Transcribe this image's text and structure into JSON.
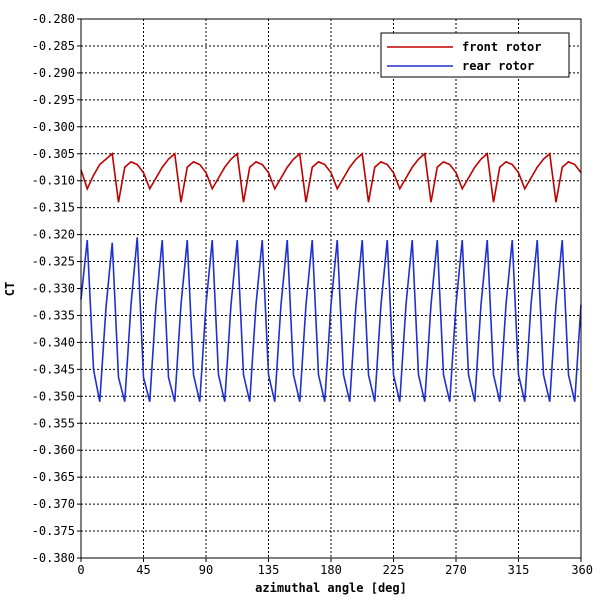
{
  "chart_data": {
    "type": "line",
    "title": "",
    "xlabel": "azimuthal angle [deg]",
    "ylabel": "CT",
    "xlim": [
      0,
      360
    ],
    "ylim": [
      -0.38,
      -0.28
    ],
    "xticks": [
      0,
      45,
      90,
      135,
      180,
      225,
      270,
      315,
      360
    ],
    "xtick_labels": [
      "0",
      "45",
      "90",
      "135",
      "180",
      "225",
      "270",
      "315",
      "360"
    ],
    "yticks": [
      -0.28,
      -0.285,
      -0.29,
      -0.295,
      -0.3,
      -0.305,
      -0.31,
      -0.315,
      -0.32,
      -0.325,
      -0.33,
      -0.335,
      -0.34,
      -0.345,
      -0.35,
      -0.355,
      -0.36,
      -0.365,
      -0.37,
      -0.375,
      -0.38
    ],
    "ytick_labels": [
      "-0.280",
      "-0.285",
      "-0.290",
      "-0.295",
      "-0.300",
      "-0.305",
      "-0.310",
      "-0.315",
      "-0.320",
      "-0.325",
      "-0.330",
      "-0.335",
      "-0.340",
      "-0.345",
      "-0.350",
      "-0.355",
      "-0.360",
      "-0.365",
      "-0.370",
      "-0.375",
      "-0.380"
    ],
    "grid": true,
    "legend_position": "top-right",
    "series": [
      {
        "name": "front rotor",
        "color": "#c00000",
        "x": [
          0,
          4.5,
          9,
          13.5,
          18,
          22.5,
          27,
          31.5,
          36,
          40.5,
          45,
          49.5,
          54,
          58.5,
          63,
          67.5,
          72,
          76.5,
          81,
          85.5,
          90,
          94.5,
          99,
          103.5,
          108,
          112.5,
          117,
          121.5,
          126,
          130.5,
          135,
          139.5,
          144,
          148.5,
          153,
          157.5,
          162,
          166.5,
          171,
          175.5,
          180,
          184.5,
          189,
          193.5,
          198,
          202.5,
          207,
          211.5,
          216,
          220.5,
          225,
          229.5,
          234,
          238.5,
          243,
          247.5,
          252,
          256.5,
          261,
          265.5,
          270,
          274.5,
          279,
          283.5,
          288,
          292.5,
          297,
          301.5,
          306,
          310.5,
          315,
          319.5,
          324,
          328.5,
          333,
          337.5,
          342,
          346.5,
          351,
          355.5,
          360
        ],
        "y": [
          -0.308,
          -0.3115,
          -0.309,
          -0.307,
          -0.306,
          -0.305,
          -0.314,
          -0.3075,
          -0.3065,
          -0.307,
          -0.3085,
          -0.3115,
          -0.3095,
          -0.3075,
          -0.306,
          -0.305,
          -0.314,
          -0.3075,
          -0.3065,
          -0.307,
          -0.3085,
          -0.3115,
          -0.3095,
          -0.3075,
          -0.306,
          -0.305,
          -0.314,
          -0.3075,
          -0.3065,
          -0.307,
          -0.3085,
          -0.3115,
          -0.3095,
          -0.3075,
          -0.306,
          -0.305,
          -0.314,
          -0.3075,
          -0.3065,
          -0.307,
          -0.3085,
          -0.3115,
          -0.3095,
          -0.3075,
          -0.306,
          -0.305,
          -0.314,
          -0.3075,
          -0.3065,
          -0.307,
          -0.3085,
          -0.3115,
          -0.3095,
          -0.3075,
          -0.306,
          -0.305,
          -0.314,
          -0.3075,
          -0.3065,
          -0.307,
          -0.3085,
          -0.3115,
          -0.3095,
          -0.3075,
          -0.306,
          -0.305,
          -0.314,
          -0.3075,
          -0.3065,
          -0.307,
          -0.3085,
          -0.3115,
          -0.3095,
          -0.3075,
          -0.306,
          -0.305,
          -0.314,
          -0.3075,
          -0.3065,
          -0.307,
          -0.3085
        ]
      },
      {
        "name": "rear rotor",
        "color": "#2030d0",
        "x": [
          0,
          4.5,
          9,
          13.5,
          18,
          22.5,
          27,
          31.5,
          36,
          40.5,
          45,
          49.5,
          54,
          58.5,
          63,
          67.5,
          72,
          76.5,
          81,
          85.5,
          90,
          94.5,
          99,
          103.5,
          108,
          112.5,
          117,
          121.5,
          126,
          130.5,
          135,
          139.5,
          144,
          148.5,
          153,
          157.5,
          162,
          166.5,
          171,
          175.5,
          180,
          184.5,
          189,
          193.5,
          198,
          202.5,
          207,
          211.5,
          216,
          220.5,
          225,
          229.5,
          234,
          238.5,
          243,
          247.5,
          252,
          256.5,
          261,
          265.5,
          270,
          274.5,
          279,
          283.5,
          288,
          292.5,
          297,
          301.5,
          306,
          310.5,
          315,
          319.5,
          324,
          328.5,
          333,
          337.5,
          342,
          346.5,
          351,
          355.5,
          360
        ],
        "y": [
          -0.332,
          -0.321,
          -0.345,
          -0.351,
          -0.3335,
          -0.3215,
          -0.3465,
          -0.351,
          -0.333,
          -0.3205,
          -0.3465,
          -0.351,
          -0.333,
          -0.321,
          -0.3465,
          -0.351,
          -0.333,
          -0.321,
          -0.346,
          -0.351,
          -0.333,
          -0.321,
          -0.346,
          -0.351,
          -0.333,
          -0.321,
          -0.346,
          -0.351,
          -0.333,
          -0.321,
          -0.346,
          -0.351,
          -0.333,
          -0.321,
          -0.346,
          -0.351,
          -0.333,
          -0.321,
          -0.346,
          -0.351,
          -0.333,
          -0.321,
          -0.346,
          -0.351,
          -0.333,
          -0.321,
          -0.346,
          -0.351,
          -0.333,
          -0.321,
          -0.346,
          -0.351,
          -0.333,
          -0.321,
          -0.346,
          -0.351,
          -0.333,
          -0.321,
          -0.346,
          -0.351,
          -0.333,
          -0.321,
          -0.346,
          -0.351,
          -0.333,
          -0.321,
          -0.346,
          -0.351,
          -0.333,
          -0.321,
          -0.346,
          -0.351,
          -0.333,
          -0.321,
          -0.346,
          -0.351,
          -0.333,
          -0.321,
          -0.346,
          -0.351,
          -0.333
        ]
      }
    ]
  }
}
